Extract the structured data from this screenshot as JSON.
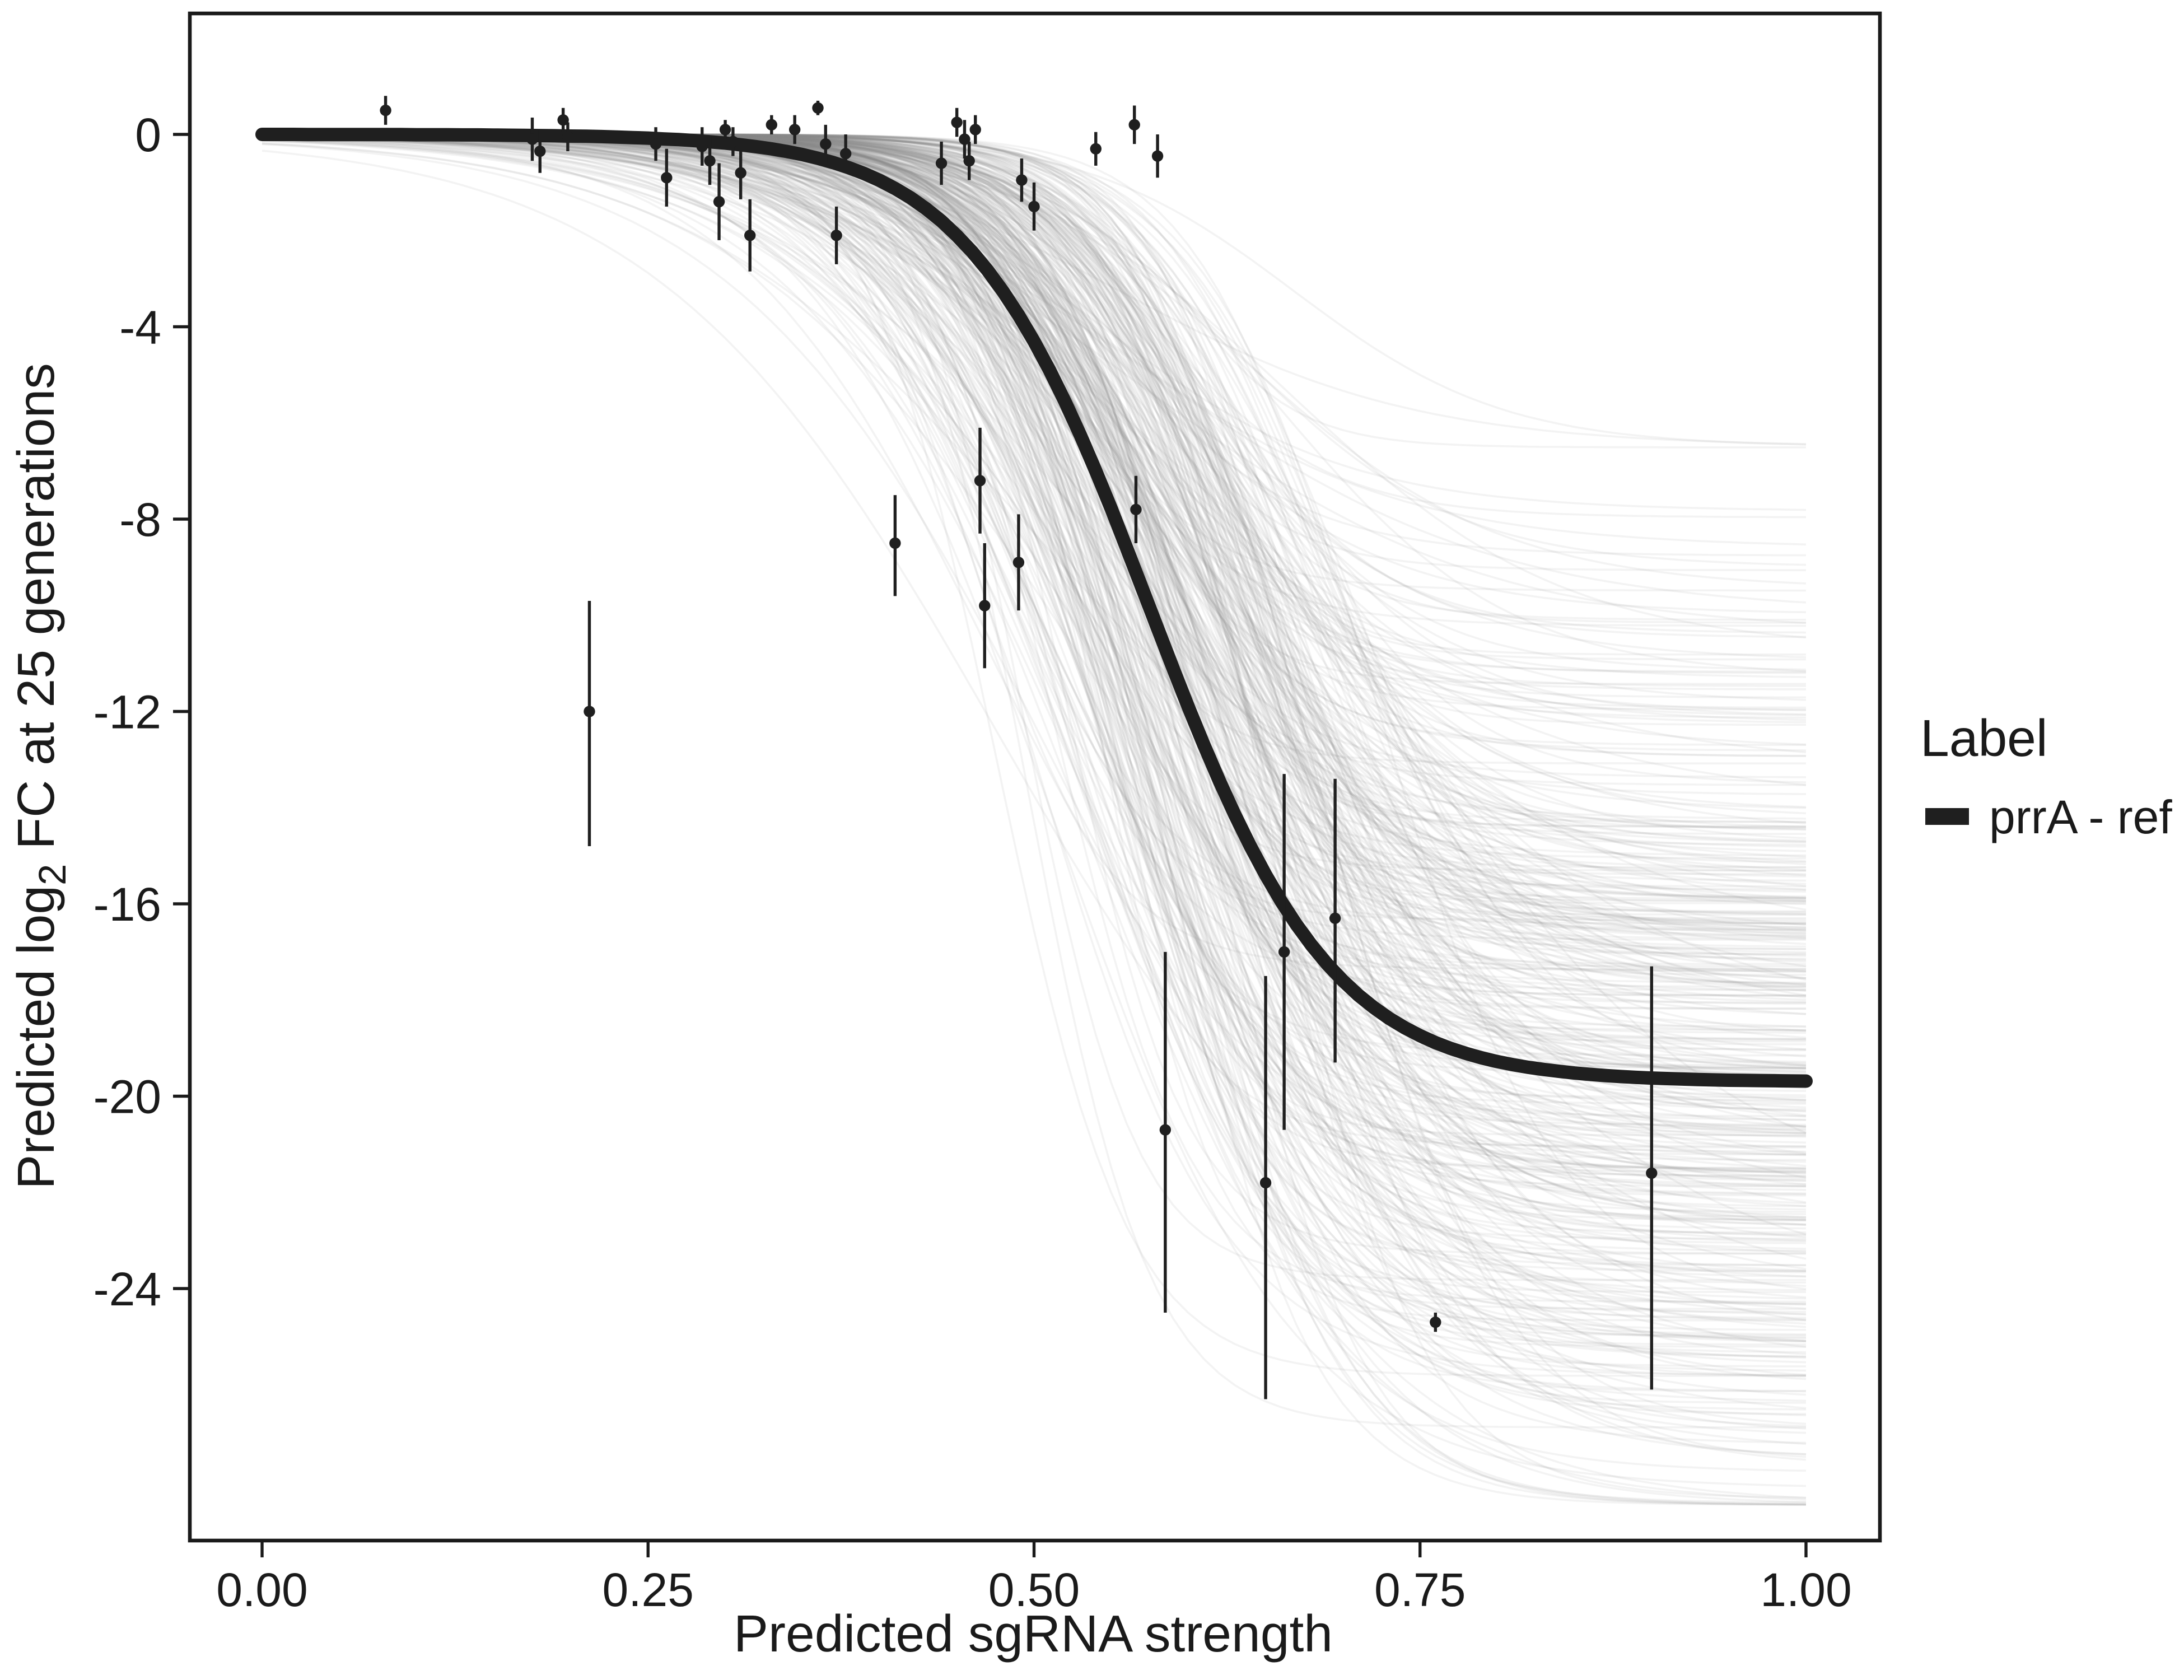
{
  "chart_data": {
    "type": "line",
    "title": "",
    "xlabel": "Predicted sgRNA strength",
    "ylabel_parts": [
      "Predicted  log",
      "2",
      " FC at 25 generations"
    ],
    "xlim": [
      0,
      1
    ],
    "ylim": [
      -28.5,
      1.5
    ],
    "grid": false,
    "x_ticks": [
      {
        "v": 0.0,
        "label": "0.00"
      },
      {
        "v": 0.25,
        "label": "0.25"
      },
      {
        "v": 0.5,
        "label": "0.50"
      },
      {
        "v": 0.75,
        "label": "0.75"
      },
      {
        "v": 1.0,
        "label": "1.00"
      }
    ],
    "y_ticks": [
      {
        "v": 0,
        "label": "0"
      },
      {
        "v": -4,
        "label": "-4"
      },
      {
        "v": -8,
        "label": "-8"
      },
      {
        "v": -12,
        "label": "-12"
      },
      {
        "v": -16,
        "label": "-16"
      },
      {
        "v": -20,
        "label": "-20"
      },
      {
        "v": -24,
        "label": "-24"
      }
    ],
    "main_curve": {
      "name": "prrA - ref",
      "color": "#1f1f1f",
      "stroke_width": 8,
      "params": {
        "L": -19.7,
        "x0": 0.575,
        "k": 17
      }
    },
    "ensemble": {
      "description": "posterior draw sigmoid curves",
      "count": 420,
      "color": "#8c8c8c",
      "opacity": 0.1,
      "seed": 42,
      "L_mean": -19.5,
      "L_sd": 4.8,
      "L_min": -28.5,
      "L_max": -6.5,
      "x0_mean": 0.585,
      "x0_sd": 0.05,
      "x0_min": 0.45,
      "x0_max": 0.8,
      "k_mean": 17,
      "k_sd": 4.5,
      "k_min": 9,
      "k_max": 30
    },
    "points_note": "each point = [x, y, y_low, y_high] (pointrange with error bars)",
    "points": [
      [
        0.08,
        0.5,
        0.2,
        0.8
      ],
      [
        0.175,
        -0.1,
        -0.55,
        0.35
      ],
      [
        0.18,
        -0.35,
        -0.8,
        0.1
      ],
      [
        0.195,
        0.3,
        0.05,
        0.55
      ],
      [
        0.198,
        -0.05,
        -0.35,
        0.25
      ],
      [
        0.212,
        -12.0,
        -14.8,
        -9.7
      ],
      [
        0.255,
        -0.2,
        -0.55,
        0.15
      ],
      [
        0.262,
        -0.9,
        -1.5,
        -0.3
      ],
      [
        0.285,
        -0.25,
        -0.65,
        0.15
      ],
      [
        0.29,
        -0.55,
        -1.05,
        -0.05
      ],
      [
        0.296,
        -1.4,
        -2.2,
        -0.6
      ],
      [
        0.3,
        0.1,
        -0.1,
        0.3
      ],
      [
        0.305,
        -0.15,
        -0.45,
        0.15
      ],
      [
        0.31,
        -0.8,
        -1.35,
        -0.25
      ],
      [
        0.316,
        -2.1,
        -2.85,
        -1.35
      ],
      [
        0.33,
        0.2,
        0.0,
        0.4
      ],
      [
        0.345,
        0.1,
        -0.2,
        0.4
      ],
      [
        0.36,
        0.55,
        0.4,
        0.7
      ],
      [
        0.365,
        -0.2,
        -0.6,
        0.2
      ],
      [
        0.372,
        -2.1,
        -2.7,
        -1.5
      ],
      [
        0.378,
        -0.4,
        -0.8,
        0.0
      ],
      [
        0.41,
        -8.5,
        -9.6,
        -7.5
      ],
      [
        0.44,
        -0.6,
        -1.05,
        -0.15
      ],
      [
        0.45,
        0.25,
        -0.05,
        0.55
      ],
      [
        0.455,
        -0.1,
        -0.5,
        0.3
      ],
      [
        0.458,
        -0.55,
        -0.95,
        -0.15
      ],
      [
        0.462,
        0.1,
        -0.2,
        0.4
      ],
      [
        0.465,
        -7.2,
        -8.3,
        -6.1
      ],
      [
        0.468,
        -9.8,
        -11.1,
        -8.5
      ],
      [
        0.49,
        -8.9,
        -9.9,
        -7.9
      ],
      [
        0.492,
        -0.95,
        -1.4,
        -0.5
      ],
      [
        0.5,
        -1.5,
        -2.0,
        -1.0
      ],
      [
        0.54,
        -0.3,
        -0.65,
        0.05
      ],
      [
        0.565,
        0.2,
        -0.2,
        0.6
      ],
      [
        0.566,
        -7.8,
        -8.5,
        -7.1
      ],
      [
        0.58,
        -0.45,
        -0.9,
        0.0
      ],
      [
        0.585,
        -20.7,
        -24.5,
        -17.0
      ],
      [
        0.65,
        -21.8,
        -26.3,
        -17.5
      ],
      [
        0.662,
        -17.0,
        -20.7,
        -13.3
      ],
      [
        0.695,
        -16.3,
        -19.3,
        -13.4
      ],
      [
        0.76,
        -24.7,
        -24.9,
        -24.5
      ],
      [
        0.9,
        -21.6,
        -26.1,
        -17.3
      ]
    ],
    "legend": {
      "title": "Label",
      "position": "right",
      "items": [
        {
          "label": "prrA - ref",
          "color": "#1f1f1f",
          "key": "thick-line"
        }
      ]
    }
  }
}
